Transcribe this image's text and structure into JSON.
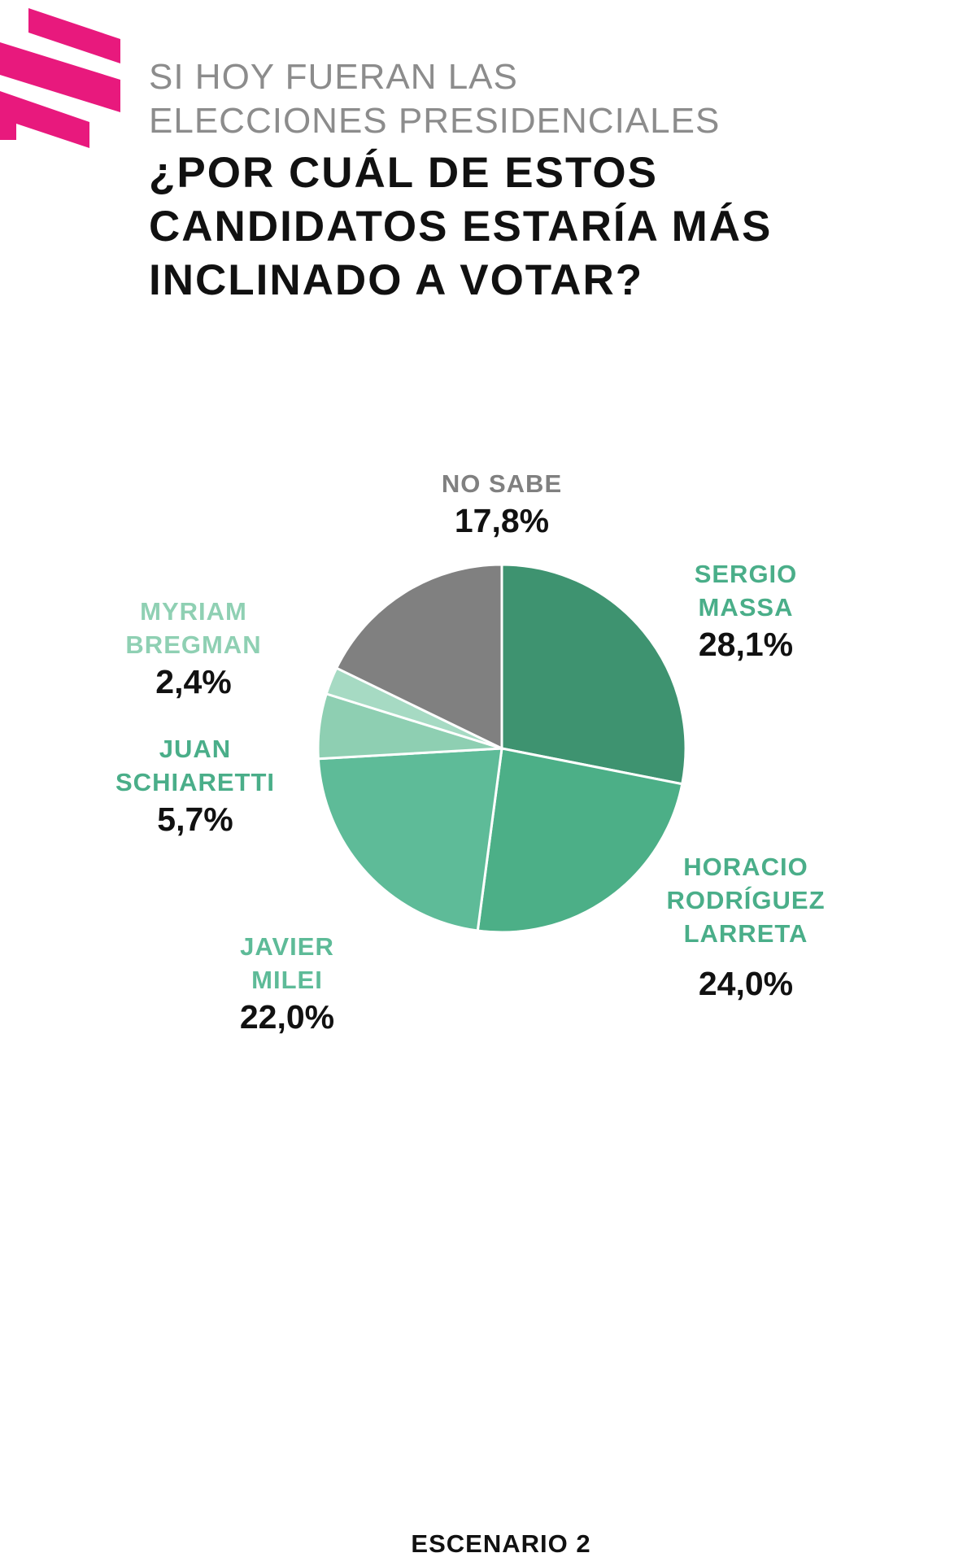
{
  "header": {
    "subtitle_line1": "SI HOY FUERAN LAS",
    "subtitle_line2": "ELECCIONES PRESIDENCIALES",
    "title_line1": "¿POR CUÁL DE ESTOS",
    "title_line2": "CANDIDATOS ESTARÍA MÁS",
    "title_line3": "INCLINADO A VOTAR?"
  },
  "footer": {
    "label": "ESCENARIO 2"
  },
  "colors": {
    "brand": "#e8197d",
    "subtitle": "#8c8c8c"
  },
  "chart_data": {
    "type": "pie",
    "title": "¿POR CUÁL DE ESTOS CANDIDATOS ESTARÍA MÁS INCLINADO A VOTAR?",
    "slices": [
      {
        "label_lines": [
          "SERGIO",
          "MASSA"
        ],
        "value": 28.1,
        "value_label": "28,1%",
        "color": "#3e9370",
        "label_color": "#4aae89"
      },
      {
        "label_lines": [
          "HORACIO",
          "RODRÍGUEZ",
          "LARRETA"
        ],
        "value": 24.0,
        "value_label": "24,0%",
        "color": "#4caf87",
        "label_color": "#4aae89"
      },
      {
        "label_lines": [
          "JAVIER",
          "MILEI"
        ],
        "value": 22.0,
        "value_label": "22,0%",
        "color": "#5ebb98",
        "label_color": "#5ebb98"
      },
      {
        "label_lines": [
          "JUAN",
          "SCHIARETTI"
        ],
        "value": 5.7,
        "value_label": "5,7%",
        "color": "#8ecfb2",
        "label_color": "#4aae89"
      },
      {
        "label_lines": [
          "MYRIAM",
          "BREGMAN"
        ],
        "value": 2.4,
        "value_label": "2,4%",
        "color": "#a6dac3",
        "label_color": "#8fd0b3"
      },
      {
        "label_lines": [
          "NO SABE"
        ],
        "value": 17.8,
        "value_label": "17,8%",
        "color": "#808080",
        "label_color": "#808080"
      }
    ]
  }
}
